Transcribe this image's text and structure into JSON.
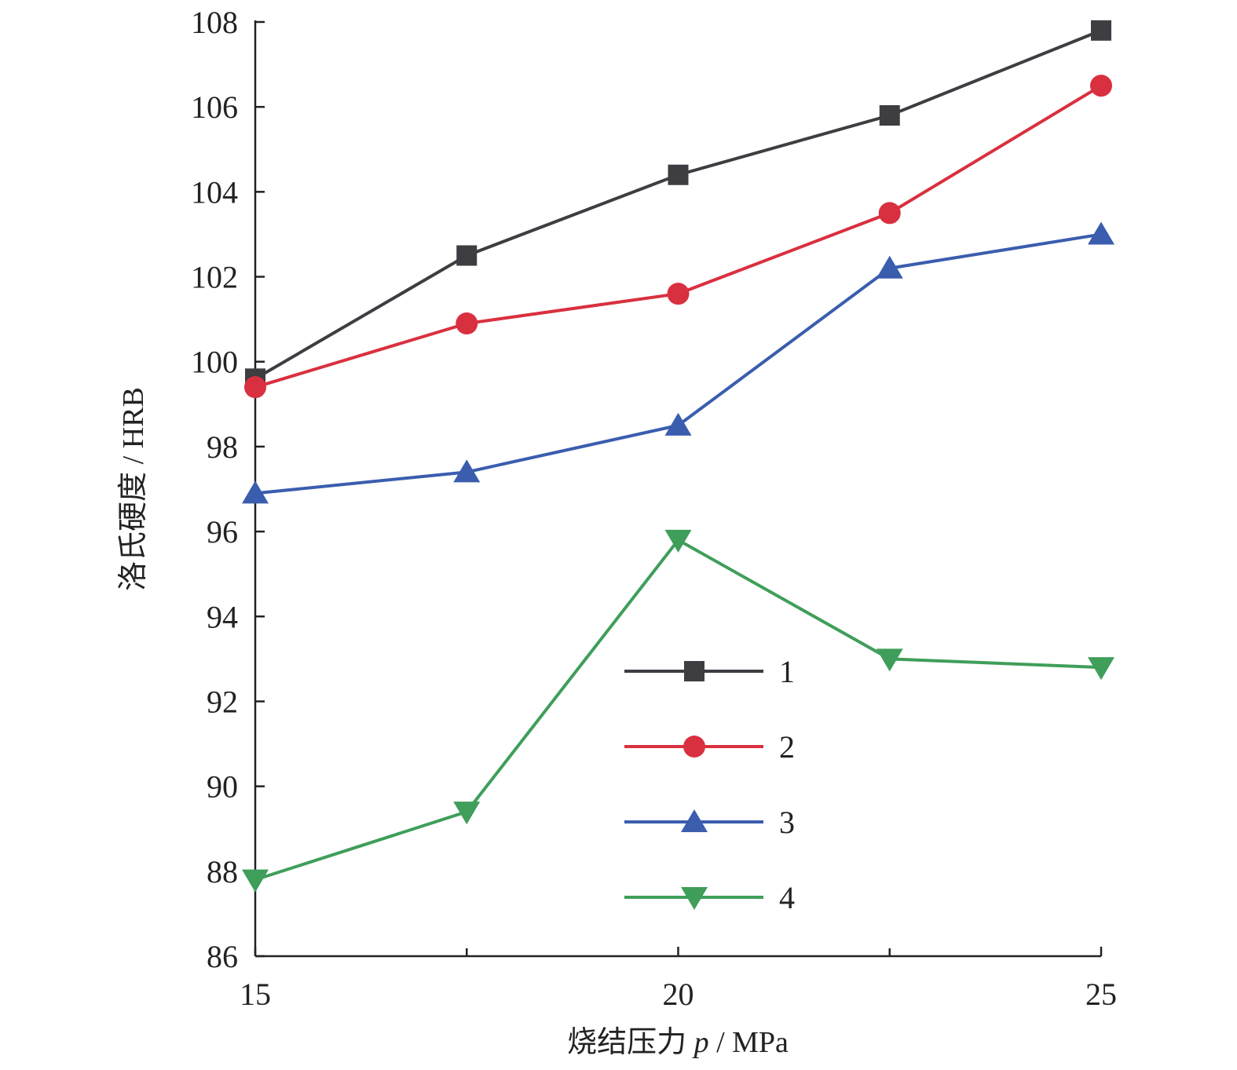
{
  "chart_data": {
    "type": "line",
    "xlabel_main": "烧结压力 ",
    "xlabel_var": "p",
    "xlabel_unit": " / MPa",
    "ylabel": "洛氏硬度 / HRB",
    "x": [
      15,
      17.5,
      20,
      22.5,
      25
    ],
    "xlim": [
      15,
      25
    ],
    "ylim": [
      86,
      108
    ],
    "xticks": [
      15,
      20,
      25
    ],
    "xtick_minor": [
      17.5,
      22.5
    ],
    "yticks": [
      86,
      88,
      90,
      92,
      94,
      96,
      98,
      100,
      102,
      104,
      106,
      108
    ],
    "grid": false,
    "legend_position": "center-right",
    "series": [
      {
        "name": "1",
        "color": "#3d3d42",
        "marker": "square",
        "values": [
          99.6,
          102.5,
          104.4,
          105.8,
          107.8
        ]
      },
      {
        "name": "2",
        "color": "#d9303f",
        "marker": "circle",
        "values": [
          99.4,
          100.9,
          101.6,
          103.5,
          106.5
        ]
      },
      {
        "name": "3",
        "color": "#3a5dae",
        "marker": "triangle-up",
        "values": [
          96.9,
          97.4,
          98.5,
          102.2,
          103.0
        ]
      },
      {
        "name": "4",
        "color": "#3f9e5a",
        "marker": "triangle-down",
        "values": [
          87.8,
          89.4,
          95.8,
          93.0,
          92.8
        ]
      }
    ]
  }
}
